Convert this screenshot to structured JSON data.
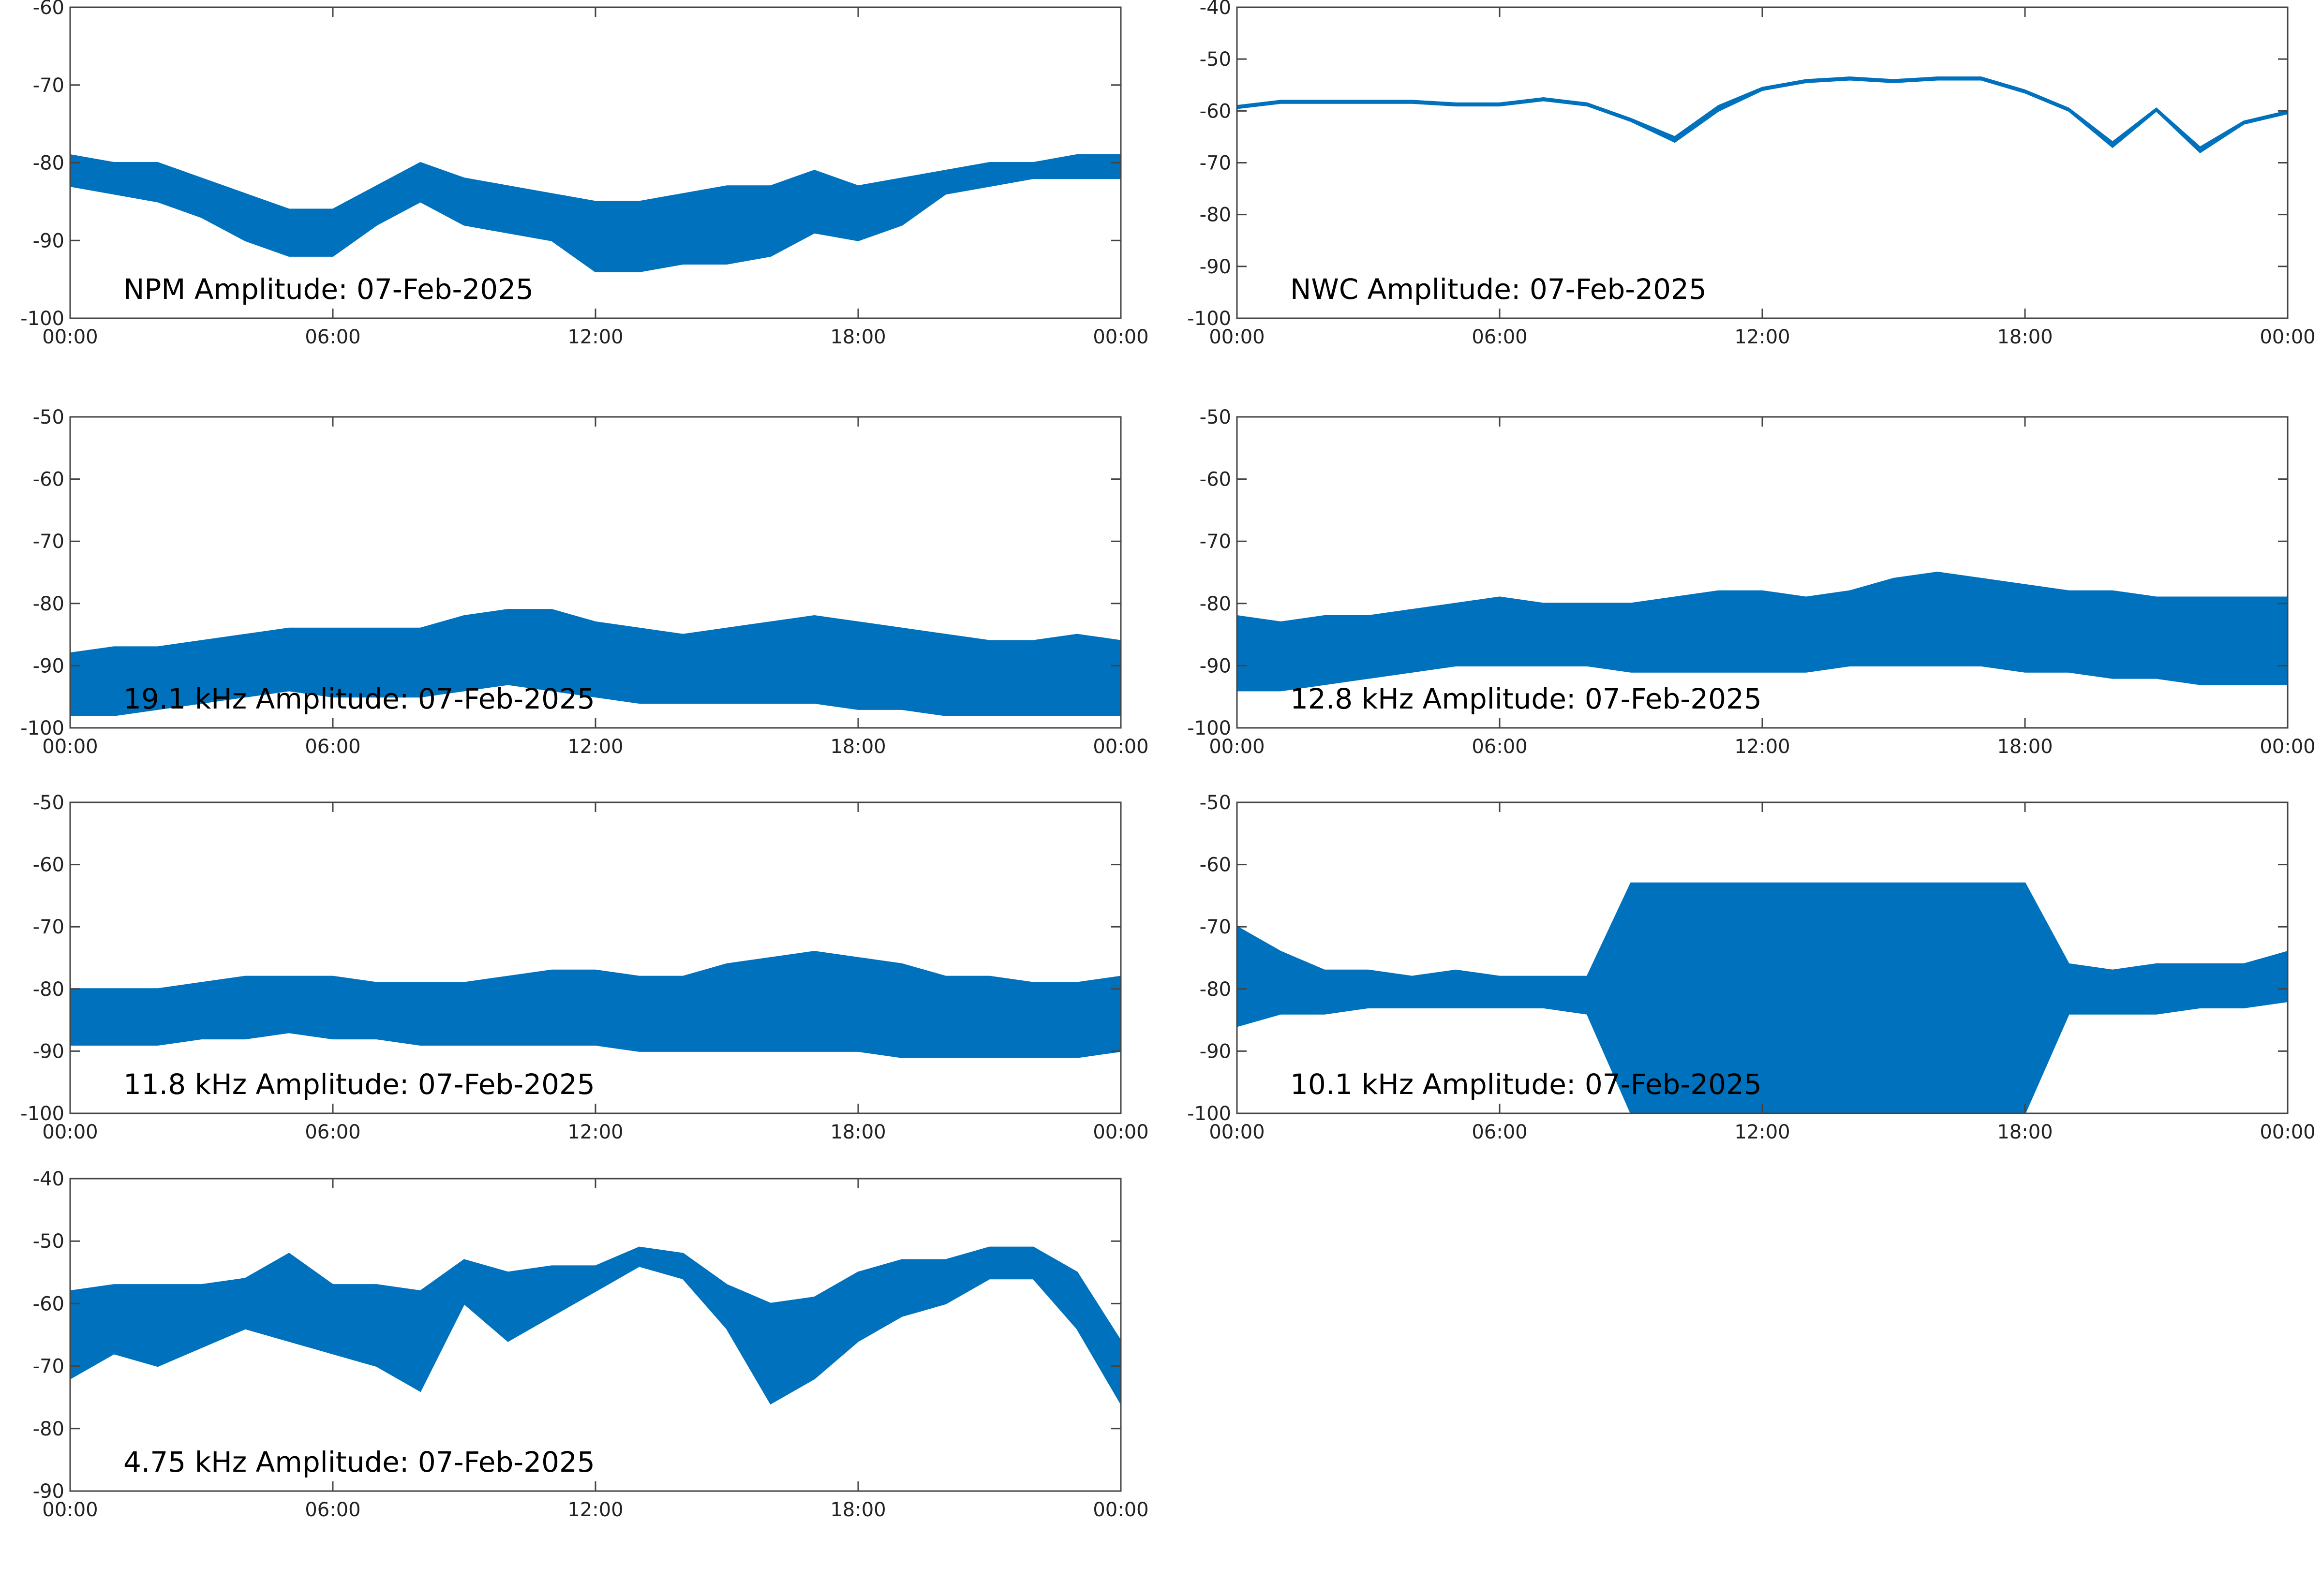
{
  "chart_data": [
    {
      "type": "band",
      "title": "NPM Amplitude: 07-Feb-2025",
      "color": "#0072bd",
      "x": [
        0,
        1,
        2,
        3,
        4,
        5,
        6,
        7,
        8,
        9,
        10,
        11,
        12,
        13,
        14,
        15,
        16,
        17,
        18,
        19,
        20,
        21,
        22,
        23,
        24
      ],
      "lower": [
        -83,
        -84,
        -85,
        -87,
        -90,
        -92,
        -92,
        -88,
        -85,
        -88,
        -89,
        -90,
        -94,
        -94,
        -93,
        -93,
        -92,
        -89,
        -90,
        -88,
        -84,
        -83,
        -82,
        -82,
        -82
      ],
      "upper": [
        -79,
        -80,
        -80,
        -82,
        -84,
        -86,
        -86,
        -83,
        -80,
        -82,
        -83,
        -84,
        -85,
        -85,
        -84,
        -83,
        -83,
        -81,
        -83,
        -82,
        -81,
        -80,
        -80,
        -79,
        -79
      ],
      "xlim": [
        0,
        24
      ],
      "xticks": [
        {
          "value": 0,
          "label": "00:00"
        },
        {
          "value": 6,
          "label": "06:00"
        },
        {
          "value": 12,
          "label": "12:00"
        },
        {
          "value": 18,
          "label": "18:00"
        },
        {
          "value": 24,
          "label": "00:00"
        }
      ],
      "ylim": [
        -100,
        -60
      ],
      "yticks": [
        -100,
        -90,
        -80,
        -70,
        -60
      ]
    },
    {
      "type": "band",
      "title": "NWC Amplitude: 07-Feb-2025",
      "color": "#0072bd",
      "x": [
        0,
        1,
        2,
        3,
        4,
        5,
        6,
        7,
        8,
        9,
        10,
        11,
        12,
        13,
        14,
        15,
        16,
        17,
        18,
        19,
        20,
        21,
        22,
        23,
        24
      ],
      "lower": [
        -59.5,
        -58.5,
        -58.5,
        -58.5,
        -58.5,
        -59,
        -59,
        -58,
        -59,
        -62,
        -66,
        -60,
        -56,
        -54.5,
        -54,
        -54.5,
        -54,
        -54,
        -56.5,
        -60,
        -67,
        -60,
        -68,
        -62.5,
        -60.5
      ],
      "upper": [
        -59,
        -58,
        -58,
        -58,
        -58,
        -58.5,
        -58.5,
        -57.5,
        -58.5,
        -61.5,
        -65,
        -59,
        -55.5,
        -54,
        -53.5,
        -54,
        -53.5,
        -53.5,
        -56,
        -59.5,
        -66,
        -59.5,
        -67,
        -62,
        -60
      ],
      "xlim": [
        0,
        24
      ],
      "xticks": [
        {
          "value": 0,
          "label": "00:00"
        },
        {
          "value": 6,
          "label": "06:00"
        },
        {
          "value": 12,
          "label": "12:00"
        },
        {
          "value": 18,
          "label": "18:00"
        },
        {
          "value": 24,
          "label": "00:00"
        }
      ],
      "ylim": [
        -100,
        -40
      ],
      "yticks": [
        -100,
        -90,
        -80,
        -70,
        -60,
        -50,
        -40
      ]
    },
    {
      "type": "band",
      "title": "19.1 kHz Amplitude: 07-Feb-2025",
      "color": "#0072bd",
      "x": [
        0,
        1,
        2,
        3,
        4,
        5,
        6,
        7,
        8,
        9,
        10,
        11,
        12,
        13,
        14,
        15,
        16,
        17,
        18,
        19,
        20,
        21,
        22,
        23,
        24
      ],
      "lower": [
        -98,
        -98,
        -97,
        -96,
        -95,
        -94,
        -95,
        -95,
        -95,
        -94,
        -93,
        -94,
        -95,
        -96,
        -96,
        -96,
        -96,
        -96,
        -97,
        -97,
        -98,
        -98,
        -98,
        -98,
        -98
      ],
      "upper": [
        -88,
        -87,
        -87,
        -86,
        -85,
        -84,
        -84,
        -84,
        -84,
        -82,
        -81,
        -81,
        -83,
        -84,
        -85,
        -84,
        -83,
        -82,
        -83,
        -84,
        -85,
        -86,
        -86,
        -85,
        -86
      ],
      "xlim": [
        0,
        24
      ],
      "xticks": [
        {
          "value": 0,
          "label": "00:00"
        },
        {
          "value": 6,
          "label": "06:00"
        },
        {
          "value": 12,
          "label": "12:00"
        },
        {
          "value": 18,
          "label": "18:00"
        },
        {
          "value": 24,
          "label": "00:00"
        }
      ],
      "ylim": [
        -100,
        -50
      ],
      "yticks": [
        -100,
        -90,
        -80,
        -70,
        -60,
        -50
      ]
    },
    {
      "type": "band",
      "title": "12.8 kHz Amplitude: 07-Feb-2025",
      "color": "#0072bd",
      "x": [
        0,
        1,
        2,
        3,
        4,
        5,
        6,
        7,
        8,
        9,
        10,
        11,
        12,
        13,
        14,
        15,
        16,
        17,
        18,
        19,
        20,
        21,
        22,
        23,
        24
      ],
      "lower": [
        -94,
        -94,
        -93,
        -92,
        -91,
        -90,
        -90,
        -90,
        -90,
        -91,
        -91,
        -91,
        -91,
        -91,
        -90,
        -90,
        -90,
        -90,
        -91,
        -91,
        -92,
        -92,
        -93,
        -93,
        -93
      ],
      "upper": [
        -82,
        -83,
        -82,
        -82,
        -81,
        -80,
        -79,
        -80,
        -80,
        -80,
        -79,
        -78,
        -78,
        -79,
        -78,
        -76,
        -75,
        -76,
        -77,
        -78,
        -78,
        -79,
        -79,
        -79,
        -79
      ],
      "xlim": [
        0,
        24
      ],
      "xticks": [
        {
          "value": 0,
          "label": "00:00"
        },
        {
          "value": 6,
          "label": "06:00"
        },
        {
          "value": 12,
          "label": "12:00"
        },
        {
          "value": 18,
          "label": "18:00"
        },
        {
          "value": 24,
          "label": "00:00"
        }
      ],
      "ylim": [
        -100,
        -50
      ],
      "yticks": [
        -100,
        -90,
        -80,
        -70,
        -60,
        -50
      ]
    },
    {
      "type": "band",
      "title": "11.8 kHz Amplitude: 07-Feb-2025",
      "color": "#0072bd",
      "x": [
        0,
        1,
        2,
        3,
        4,
        5,
        6,
        7,
        8,
        9,
        10,
        11,
        12,
        13,
        14,
        15,
        16,
        17,
        18,
        19,
        20,
        21,
        22,
        23,
        24
      ],
      "lower": [
        -89,
        -89,
        -89,
        -88,
        -88,
        -87,
        -88,
        -88,
        -89,
        -89,
        -89,
        -89,
        -89,
        -90,
        -90,
        -90,
        -90,
        -90,
        -90,
        -91,
        -91,
        -91,
        -91,
        -91,
        -90
      ],
      "upper": [
        -80,
        -80,
        -80,
        -79,
        -78,
        -78,
        -78,
        -79,
        -79,
        -79,
        -78,
        -77,
        -77,
        -78,
        -78,
        -76,
        -75,
        -74,
        -75,
        -76,
        -78,
        -78,
        -79,
        -79,
        -78
      ],
      "xlim": [
        0,
        24
      ],
      "xticks": [
        {
          "value": 0,
          "label": "00:00"
        },
        {
          "value": 6,
          "label": "06:00"
        },
        {
          "value": 12,
          "label": "12:00"
        },
        {
          "value": 18,
          "label": "18:00"
        },
        {
          "value": 24,
          "label": "00:00"
        }
      ],
      "ylim": [
        -100,
        -50
      ],
      "yticks": [
        -100,
        -90,
        -80,
        -70,
        -60,
        -50
      ]
    },
    {
      "type": "band",
      "title": "10.1 kHz Amplitude: 07-Feb-2025",
      "color": "#0072bd",
      "x": [
        0,
        1,
        2,
        3,
        4,
        5,
        6,
        7,
        8,
        9,
        10,
        11,
        12,
        13,
        14,
        15,
        16,
        17,
        18,
        19,
        20,
        21,
        22,
        23,
        24
      ],
      "lower": [
        -86,
        -84,
        -84,
        -83,
        -83,
        -83,
        -83,
        -83,
        -84,
        -100,
        -100,
        -100,
        -100,
        -100,
        -100,
        -100,
        -100,
        -100,
        -100,
        -84,
        -84,
        -84,
        -83,
        -83,
        -82
      ],
      "upper": [
        -70,
        -74,
        -77,
        -77,
        -78,
        -77,
        -78,
        -78,
        -78,
        -63,
        -63,
        -63,
        -63,
        -63,
        -63,
        -63,
        -63,
        -63,
        -63,
        -76,
        -77,
        -76,
        -76,
        -76,
        -74
      ],
      "xlim": [
        0,
        24
      ],
      "xticks": [
        {
          "value": 0,
          "label": "00:00"
        },
        {
          "value": 6,
          "label": "06:00"
        },
        {
          "value": 12,
          "label": "12:00"
        },
        {
          "value": 18,
          "label": "18:00"
        },
        {
          "value": 24,
          "label": "00:00"
        }
      ],
      "ylim": [
        -100,
        -50
      ],
      "yticks": [
        -100,
        -90,
        -80,
        -70,
        -60,
        -50
      ]
    },
    {
      "type": "band",
      "title": "4.75 kHz Amplitude: 07-Feb-2025",
      "color": "#0072bd",
      "x": [
        0,
        1,
        2,
        3,
        4,
        5,
        6,
        7,
        8,
        9,
        10,
        11,
        12,
        13,
        14,
        15,
        16,
        17,
        18,
        19,
        20,
        21,
        22,
        23,
        24
      ],
      "lower": [
        -72,
        -68,
        -70,
        -67,
        -64,
        -66,
        -68,
        -70,
        -74,
        -60,
        -66,
        -62,
        -58,
        -54,
        -56,
        -64,
        -76,
        -72,
        -66,
        -62,
        -60,
        -56,
        -56,
        -64,
        -76
      ],
      "upper": [
        -58,
        -57,
        -57,
        -57,
        -56,
        -52,
        -57,
        -57,
        -58,
        -53,
        -55,
        -54,
        -54,
        -51,
        -52,
        -57,
        -60,
        -59,
        -55,
        -53,
        -53,
        -51,
        -51,
        -55,
        -66
      ],
      "xlim": [
        0,
        24
      ],
      "xticks": [
        {
          "value": 0,
          "label": "00:00"
        },
        {
          "value": 6,
          "label": "06:00"
        },
        {
          "value": 12,
          "label": "12:00"
        },
        {
          "value": 18,
          "label": "18:00"
        },
        {
          "value": 24,
          "label": "00:00"
        }
      ],
      "ylim": [
        -90,
        -40
      ],
      "yticks": [
        -90,
        -80,
        -70,
        -60,
        -50,
        -40
      ]
    }
  ]
}
